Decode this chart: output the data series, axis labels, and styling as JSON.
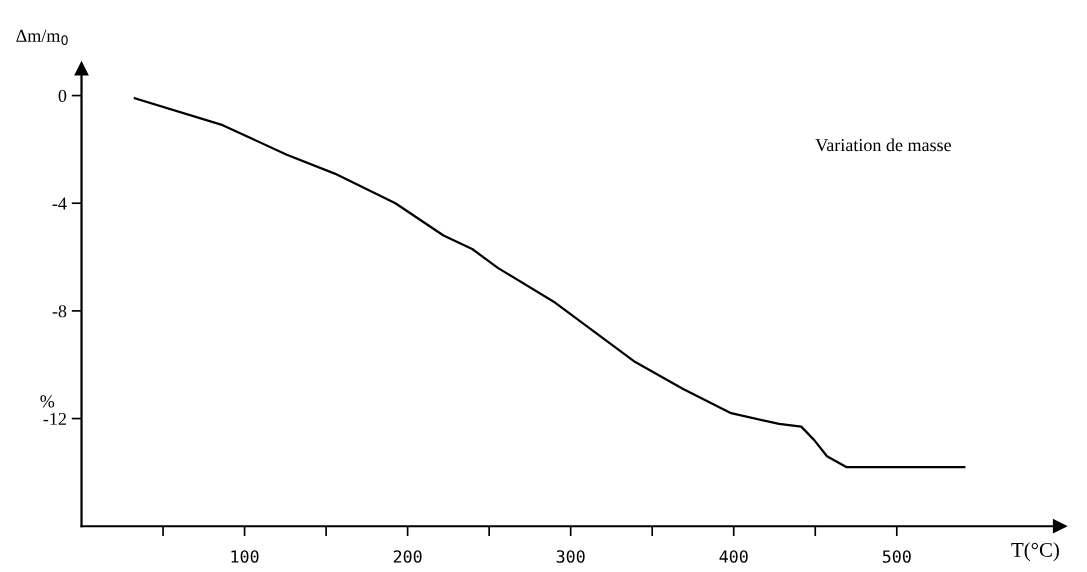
{
  "chart_data": {
    "type": "line",
    "x": [
      32.7,
      86.6,
      125.9,
      155.3,
      192.5,
      222,
      239.6,
      255.3,
      290.6,
      339.6,
      369,
      398.4,
      427.8,
      441.4,
      449.4,
      457.2,
      469,
      541.4
    ],
    "series": [
      {
        "color": "#000000",
        "values": [
          -0.1,
          -1.1,
          -2.2,
          -2.9,
          -4.0,
          -5.2,
          -5.7,
          -6.4,
          -7.7,
          -9.9,
          -10.9,
          -11.8,
          -12.2,
          -12.3,
          -12.8,
          -13.4,
          -13.8,
          -13.8
        ]
      }
    ],
    "xlim": [
      0,
      600
    ],
    "ylim": [
      -16,
      1
    ],
    "xticks": [
      {
        "value": 50,
        "label": null
      },
      100,
      {
        "value": 150,
        "label": null
      },
      200,
      {
        "value": 250,
        "label": null
      },
      300,
      {
        "value": 350,
        "label": null
      },
      400,
      {
        "value": 450,
        "label": null
      },
      500
    ],
    "yticks": [
      0,
      -4,
      -8,
      -12
    ],
    "xlabel": "T(°C)",
    "ylabel": "Δm/m$_{0}$",
    "annotations": [
      "Variation de masse",
      "%"
    ],
    "grid": false,
    "legend": false,
    "marker": "none",
    "line_style": "solid"
  }
}
